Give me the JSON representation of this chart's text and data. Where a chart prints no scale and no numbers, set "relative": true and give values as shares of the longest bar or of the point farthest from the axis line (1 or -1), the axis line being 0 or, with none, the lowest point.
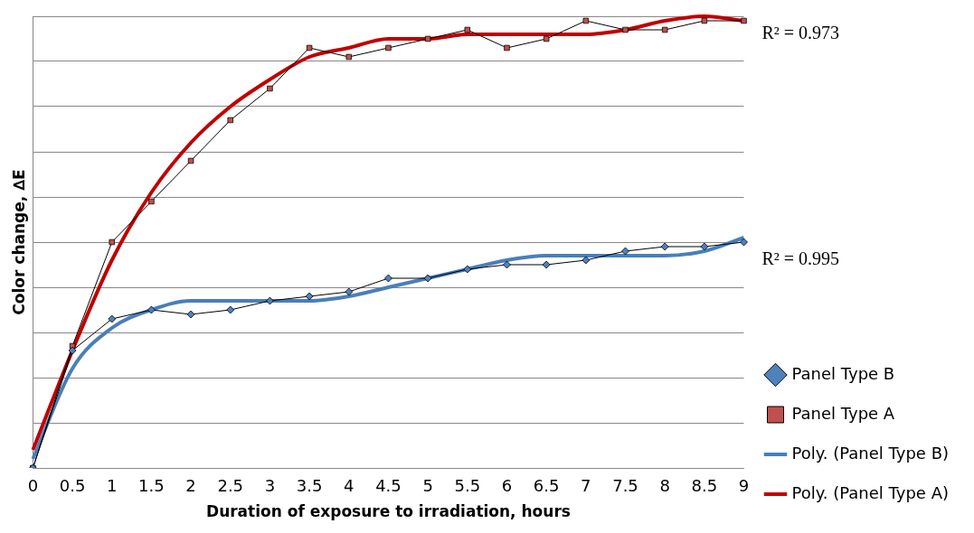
{
  "chart_data": {
    "type": "line",
    "relative": true,
    "xlabel": "Duration of exposure to irradiation, hours",
    "ylabel": "Color change, ∆E",
    "categories": [
      "0",
      "0.5",
      "1",
      "1.5",
      "2",
      "2.5",
      "3",
      "3.5",
      "4",
      "4.5",
      "5",
      "5.5",
      "6",
      "6.5",
      "7",
      "7.5",
      "8",
      "8.5",
      "9"
    ],
    "grid": "y",
    "legend": "right",
    "series": [
      {
        "name": "Panel Type B",
        "color": "#4f81bd",
        "marker": "diamond",
        "values": [
          0,
          0.26,
          0.33,
          0.35,
          0.34,
          0.35,
          0.37,
          0.38,
          0.39,
          0.42,
          0.42,
          0.44,
          0.45,
          0.45,
          0.46,
          0.48,
          0.49,
          0.49,
          0.5
        ]
      },
      {
        "name": "Panel Type A",
        "color": "#c0504d",
        "marker": "square",
        "values": [
          0,
          0.27,
          0.5,
          0.59,
          0.68,
          0.77,
          0.84,
          0.93,
          0.91,
          0.93,
          0.95,
          0.97,
          0.93,
          0.95,
          0.99,
          0.97,
          0.97,
          0.99,
          0.99
        ]
      },
      {
        "name": "Poly. (Panel Type B)",
        "color": "#4a7ebb",
        "marker": "none",
        "values": [
          0.02,
          0.22,
          0.31,
          0.35,
          0.37,
          0.37,
          0.37,
          0.37,
          0.38,
          0.4,
          0.42,
          0.44,
          0.46,
          0.47,
          0.47,
          0.47,
          0.47,
          0.48,
          0.51
        ]
      },
      {
        "name": "Poly. (Panel Type A)",
        "color": "#c00000",
        "marker": "none",
        "values": [
          0.04,
          0.26,
          0.46,
          0.61,
          0.72,
          0.8,
          0.86,
          0.91,
          0.93,
          0.95,
          0.95,
          0.96,
          0.96,
          0.96,
          0.96,
          0.97,
          0.99,
          1.0,
          0.99
        ]
      }
    ],
    "annotations": [
      "R² = 0.973",
      "R² = 0.995"
    ]
  }
}
